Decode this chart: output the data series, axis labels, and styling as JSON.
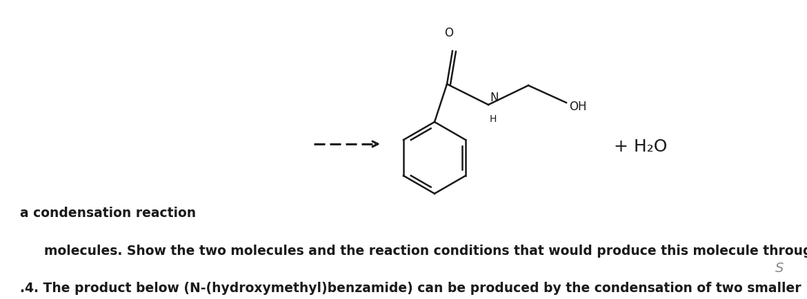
{
  "question_text_line1": ".4. The product below (N-(hydroxymethyl)benzamide) can be produced by the condensation of two smaller",
  "question_text_line2": "molecules. Show the two molecules and the reaction conditions that would produce this molecule through",
  "question_text_line3": "a condensation reaction",
  "background_color": "#ffffff",
  "text_color": "#1a1a1a",
  "line_color": "#1a1a1a",
  "h2o_text": "+ H₂O",
  "watermark": "S"
}
